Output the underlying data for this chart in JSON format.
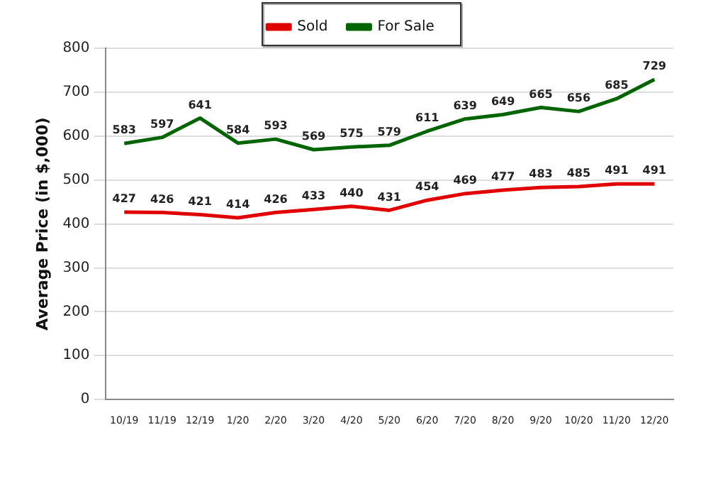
{
  "chart_data": {
    "type": "line",
    "ylabel": "Average Price (in $,000)",
    "categories": [
      "10/19",
      "11/19",
      "12/19",
      "1/20",
      "2/20",
      "3/20",
      "4/20",
      "5/20",
      "6/20",
      "7/20",
      "8/20",
      "9/20",
      "10/20",
      "11/20",
      "12/20"
    ],
    "series": [
      {
        "name": "Sold",
        "color": "#e00000",
        "values": [
          427,
          426,
          421,
          414,
          426,
          433,
          440,
          431,
          454,
          469,
          477,
          483,
          485,
          491,
          491
        ]
      },
      {
        "name": "For Sale",
        "color": "#006400",
        "values": [
          583,
          597,
          641,
          584,
          593,
          569,
          575,
          579,
          611,
          639,
          649,
          665,
          656,
          685,
          729
        ]
      }
    ],
    "ylim": [
      0,
      800
    ],
    "yticks": [
      0,
      100,
      200,
      300,
      400,
      500,
      600,
      700,
      800
    ],
    "grid": "y",
    "legend": "top",
    "marker": "none",
    "line_style": "solid",
    "data_labels": true
  }
}
